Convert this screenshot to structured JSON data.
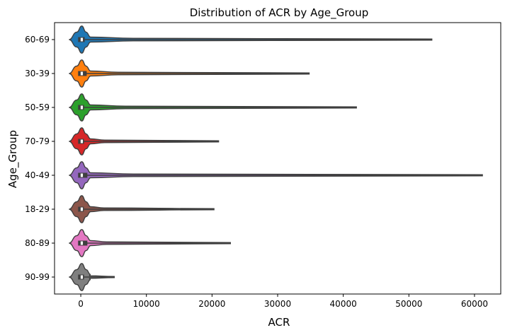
{
  "chart_data": {
    "type": "violin",
    "orientation": "horizontal",
    "title": "Distribution of ACR by Age_Group",
    "xlabel": "ACR",
    "ylabel": "Age_Group",
    "xlim": [
      -4000,
      64000
    ],
    "xticks": [
      0,
      10000,
      20000,
      30000,
      40000,
      50000,
      60000
    ],
    "xtick_labels": [
      "0",
      "10000",
      "20000",
      "30000",
      "40000",
      "50000",
      "60000"
    ],
    "grid": false,
    "legend": false,
    "categories": [
      "60-69",
      "30-39",
      "50-59",
      "70-79",
      "40-49",
      "18-29",
      "80-89",
      "90-99"
    ],
    "series": [
      {
        "category": "60-69",
        "color": "#1f77b4",
        "min": 0,
        "q1": 20,
        "median": 150,
        "q3": 600,
        "max": 53500
      },
      {
        "category": "30-39",
        "color": "#ff7f0e",
        "min": 0,
        "q1": 20,
        "median": 150,
        "q3": 900,
        "max": 34800
      },
      {
        "category": "50-59",
        "color": "#2ca02c",
        "min": 0,
        "q1": 20,
        "median": 150,
        "q3": 500,
        "max": 42000
      },
      {
        "category": "70-79",
        "color": "#d62728",
        "min": 0,
        "q1": 20,
        "median": 150,
        "q3": 500,
        "max": 21000
      },
      {
        "category": "40-49",
        "color": "#9467bd",
        "min": 0,
        "q1": 20,
        "median": 150,
        "q3": 1000,
        "max": 61200
      },
      {
        "category": "18-29",
        "color": "#8c564b",
        "min": 0,
        "q1": 20,
        "median": 150,
        "q3": 400,
        "max": 20300
      },
      {
        "category": "80-89",
        "color": "#e377c2",
        "min": 0,
        "q1": 20,
        "median": 150,
        "q3": 1000,
        "max": 22800
      },
      {
        "category": "90-99",
        "color": "#7f7f7f",
        "min": 0,
        "q1": 20,
        "median": 150,
        "q3": 500,
        "max": 5100
      }
    ]
  }
}
